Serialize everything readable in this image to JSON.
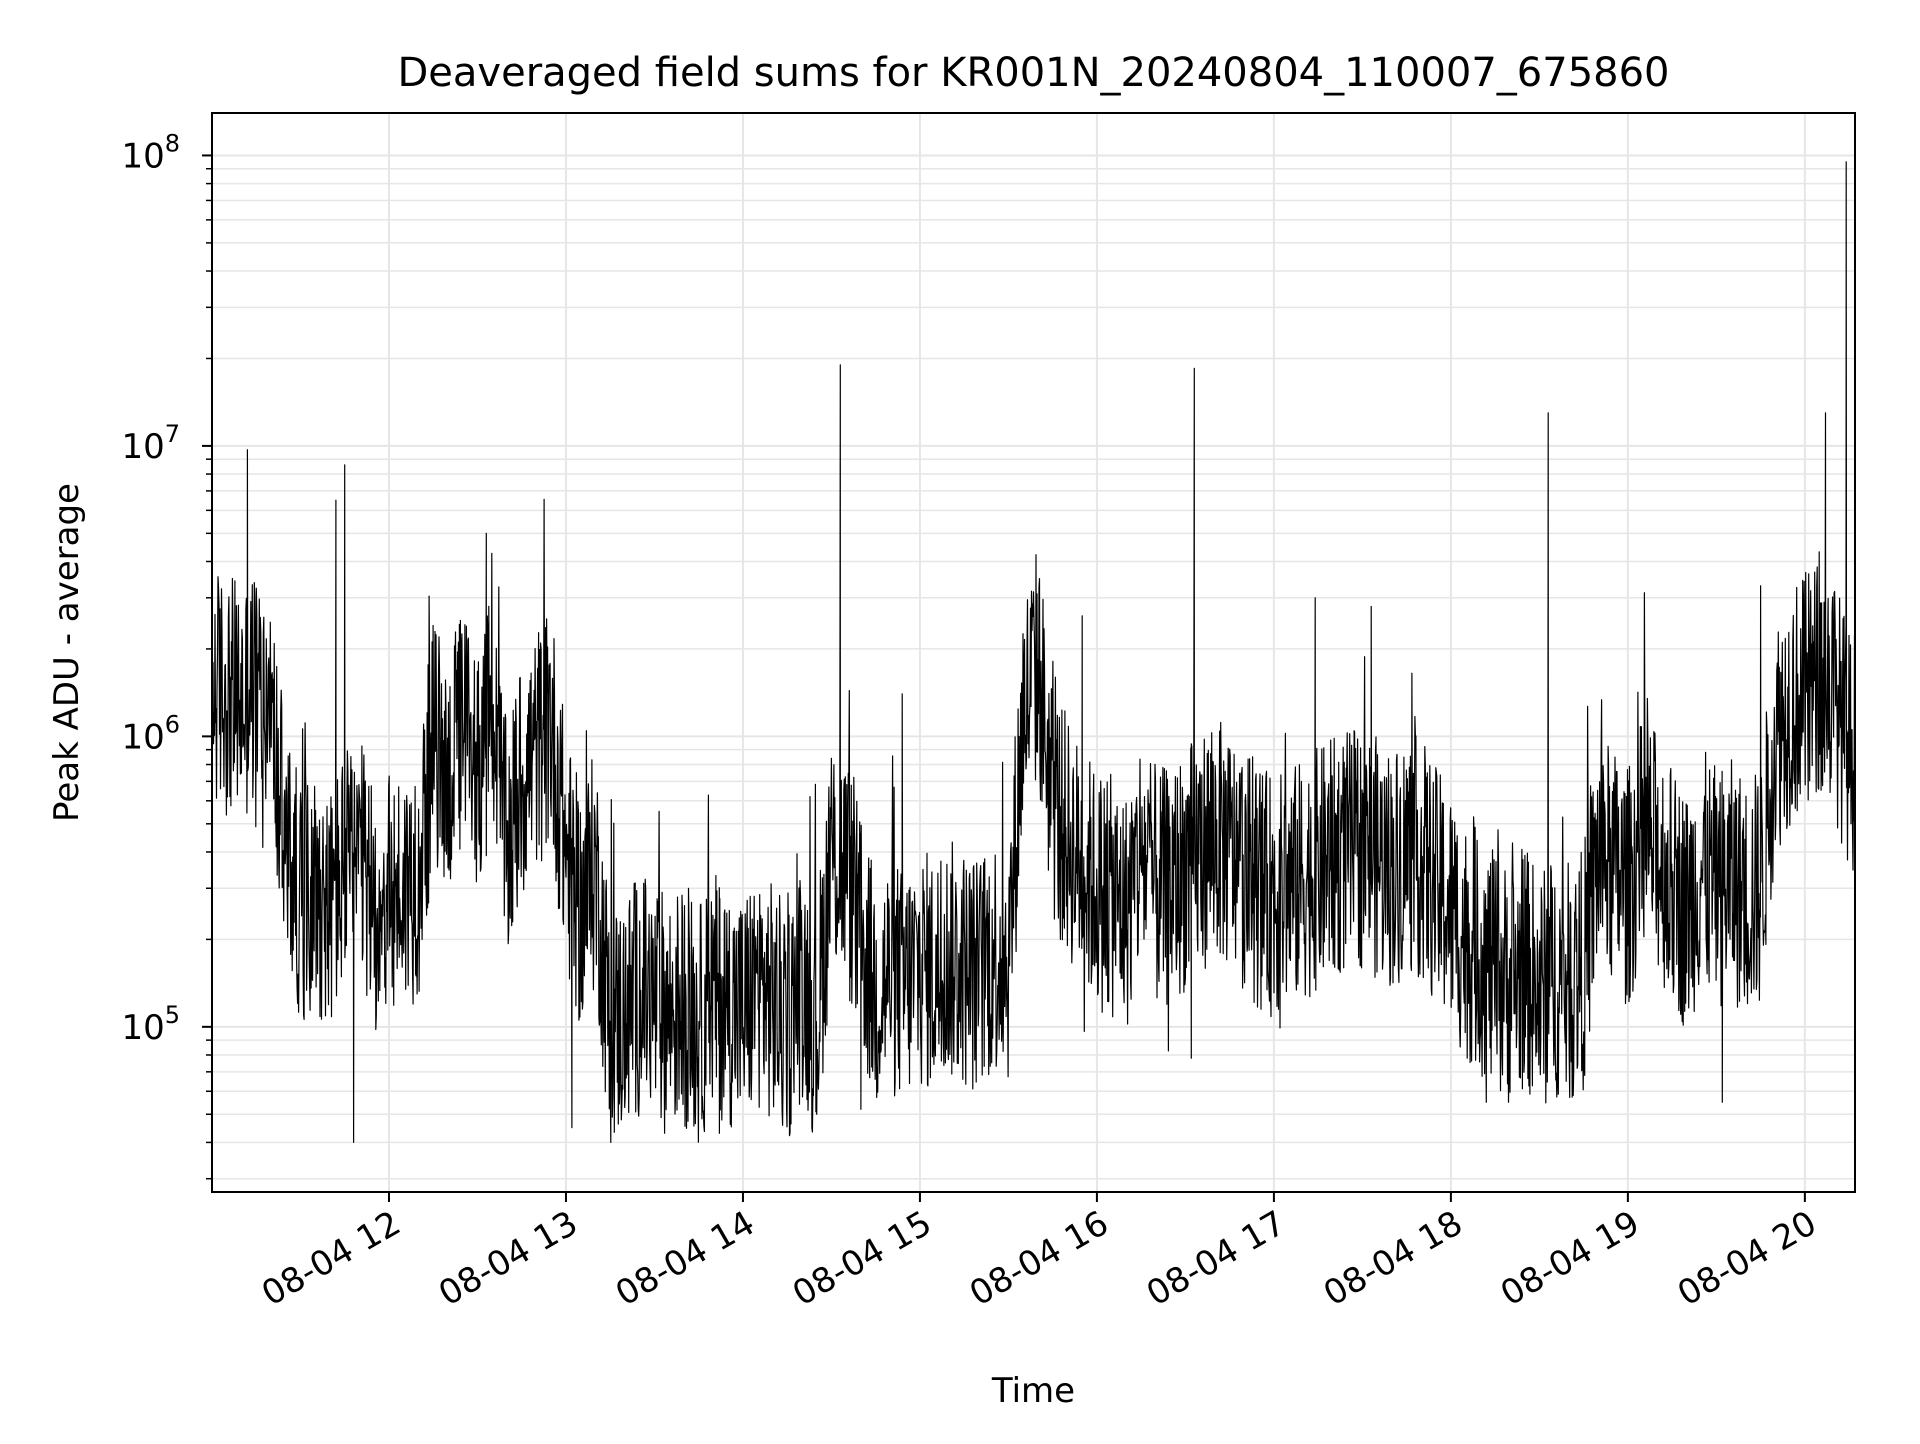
{
  "chart_data": {
    "type": "line",
    "title": "Deaveraged field sums for KR001N_20240804_110007_675860",
    "xlabel": "Time",
    "ylabel": "Peak ADU - average",
    "yscale": "log",
    "grid": true,
    "legend": "none",
    "xlim": [
      "2024-08-04 11:00",
      "2024-08-04 20:17"
    ],
    "ylim": [
      27000,
      140000000
    ],
    "x_ticks": [
      {
        "value": "2024-08-04 12:00",
        "label": "08-04 12"
      },
      {
        "value": "2024-08-04 13:00",
        "label": "08-04 13"
      },
      {
        "value": "2024-08-04 14:00",
        "label": "08-04 14"
      },
      {
        "value": "2024-08-04 15:00",
        "label": "08-04 15"
      },
      {
        "value": "2024-08-04 16:00",
        "label": "08-04 16"
      },
      {
        "value": "2024-08-04 17:00",
        "label": "08-04 17"
      },
      {
        "value": "2024-08-04 18:00",
        "label": "08-04 18"
      },
      {
        "value": "2024-08-04 19:00",
        "label": "08-04 19"
      },
      {
        "value": "2024-08-04 20:00",
        "label": "08-04 20"
      }
    ],
    "y_ticks": [
      {
        "value": 100000,
        "base": "10",
        "exp": "5"
      },
      {
        "value": 1000000,
        "base": "10",
        "exp": "6"
      },
      {
        "value": 10000000,
        "base": "10",
        "exp": "7"
      },
      {
        "value": 100000000,
        "base": "10",
        "exp": "8"
      }
    ],
    "line_color": "#000000",
    "series": [
      {
        "x": [
          "2024-08-04 11:00",
          "2024-08-04 11:05",
          "2024-08-04 11:10",
          "2024-08-04 11:15",
          "2024-08-04 11:20",
          "2024-08-04 11:25",
          "2024-08-04 11:30",
          "2024-08-04 11:35",
          "2024-08-04 11:40",
          "2024-08-04 11:45",
          "2024-08-04 11:50",
          "2024-08-04 11:55",
          "2024-08-04 12:00",
          "2024-08-04 12:05",
          "2024-08-04 12:10",
          "2024-08-04 12:15",
          "2024-08-04 12:20",
          "2024-08-04 12:25",
          "2024-08-04 12:30",
          "2024-08-04 12:35",
          "2024-08-04 12:40",
          "2024-08-04 12:45",
          "2024-08-04 12:50",
          "2024-08-04 12:55",
          "2024-08-04 13:00",
          "2024-08-04 13:05",
          "2024-08-04 13:10",
          "2024-08-04 13:15",
          "2024-08-04 13:20",
          "2024-08-04 13:25",
          "2024-08-04 13:30",
          "2024-08-04 13:35",
          "2024-08-04 13:40",
          "2024-08-04 13:45",
          "2024-08-04 13:50",
          "2024-08-04 13:55",
          "2024-08-04 14:00",
          "2024-08-04 14:05",
          "2024-08-04 14:10",
          "2024-08-04 14:15",
          "2024-08-04 14:20",
          "2024-08-04 14:25",
          "2024-08-04 14:30",
          "2024-08-04 14:35",
          "2024-08-04 14:40",
          "2024-08-04 14:45",
          "2024-08-04 14:50",
          "2024-08-04 14:55",
          "2024-08-04 15:00",
          "2024-08-04 15:05",
          "2024-08-04 15:10",
          "2024-08-04 15:15",
          "2024-08-04 15:20",
          "2024-08-04 15:25",
          "2024-08-04 15:30",
          "2024-08-04 15:35",
          "2024-08-04 15:40",
          "2024-08-04 15:45",
          "2024-08-04 15:50",
          "2024-08-04 15:55",
          "2024-08-04 16:00",
          "2024-08-04 16:05",
          "2024-08-04 16:10",
          "2024-08-04 16:15",
          "2024-08-04 16:20",
          "2024-08-04 16:25",
          "2024-08-04 16:30",
          "2024-08-04 16:35",
          "2024-08-04 16:40",
          "2024-08-04 16:45",
          "2024-08-04 16:50",
          "2024-08-04 16:55",
          "2024-08-04 17:00",
          "2024-08-04 17:05",
          "2024-08-04 17:10",
          "2024-08-04 17:15",
          "2024-08-04 17:20",
          "2024-08-04 17:25",
          "2024-08-04 17:30",
          "2024-08-04 17:35",
          "2024-08-04 17:40",
          "2024-08-04 17:45",
          "2024-08-04 17:50",
          "2024-08-04 17:55",
          "2024-08-04 18:00",
          "2024-08-04 18:05",
          "2024-08-04 18:10",
          "2024-08-04 18:15",
          "2024-08-04 18:20",
          "2024-08-04 18:25",
          "2024-08-04 18:30",
          "2024-08-04 18:35",
          "2024-08-04 18:40",
          "2024-08-04 18:45",
          "2024-08-04 18:50",
          "2024-08-04 18:55",
          "2024-08-04 19:00",
          "2024-08-04 19:05",
          "2024-08-04 19:10",
          "2024-08-04 19:15",
          "2024-08-04 19:20",
          "2024-08-04 19:25",
          "2024-08-04 19:30",
          "2024-08-04 19:35",
          "2024-08-04 19:40",
          "2024-08-04 19:45",
          "2024-08-04 19:50",
          "2024-08-04 19:55",
          "2024-08-04 20:00",
          "2024-08-04 20:05",
          "2024-08-04 20:10",
          "2024-08-04 20:15"
        ],
        "y": [
          1500000,
          1400000,
          1300000,
          1500000,
          1200000,
          400000,
          280000,
          300000,
          250000,
          350000,
          380000,
          250000,
          280000,
          300000,
          320000,
          1000000,
          700000,
          1100000,
          800000,
          1200000,
          400000,
          700000,
          900000,
          1100000,
          400000,
          250000,
          350000,
          100000,
          110000,
          130000,
          120000,
          110000,
          120000,
          100000,
          130000,
          120000,
          110000,
          140000,
          120000,
          100000,
          150000,
          100000,
          400000,
          350000,
          200000,
          130000,
          150000,
          140000,
          160000,
          150000,
          170000,
          160000,
          150000,
          180000,
          170000,
          1200000,
          1800000,
          600000,
          450000,
          350000,
          300000,
          280000,
          250000,
          400000,
          300000,
          300000,
          350000,
          400000,
          450000,
          400000,
          350000,
          300000,
          280000,
          300000,
          320000,
          350000,
          380000,
          400000,
          420000,
          380000,
          350000,
          400000,
          380000,
          300000,
          250000,
          200000,
          180000,
          150000,
          140000,
          160000,
          130000,
          150000,
          140000,
          160000,
          400000,
          350000,
          300000,
          450000,
          400000,
          300000,
          250000,
          350000,
          300000,
          320000,
          280000,
          300000,
          1000000,
          1300000,
          1400000,
          1600000,
          1400000,
          900000
        ]
      }
    ],
    "spikes": [
      {
        "x": "2024-08-04 11:12",
        "y": 9700000
      },
      {
        "x": "2024-08-04 11:42",
        "y": 6500000
      },
      {
        "x": "2024-08-04 11:45",
        "y": 8600000
      },
      {
        "x": "2024-08-04 12:33",
        "y": 5000000
      },
      {
        "x": "2024-08-04 14:33",
        "y": 19000000
      },
      {
        "x": "2024-08-04 14:54",
        "y": 1400000
      },
      {
        "x": "2024-08-04 15:55",
        "y": 2600000
      },
      {
        "x": "2024-08-04 16:33",
        "y": 18500000
      },
      {
        "x": "2024-08-04 17:14",
        "y": 3000000
      },
      {
        "x": "2024-08-04 17:33",
        "y": 2800000
      },
      {
        "x": "2024-08-04 18:33",
        "y": 13000000
      },
      {
        "x": "2024-08-04 19:45",
        "y": 3300000
      },
      {
        "x": "2024-08-04 20:07",
        "y": 13000000
      },
      {
        "x": "2024-08-04 20:14",
        "y": 95000000
      }
    ],
    "dips": [
      {
        "x": "2024-08-04 11:48",
        "y": 40000
      },
      {
        "x": "2024-08-04 13:02",
        "y": 45000
      },
      {
        "x": "2024-08-04 13:52",
        "y": 43000
      },
      {
        "x": "2024-08-04 14:25",
        "y": 50000
      },
      {
        "x": "2024-08-04 14:40",
        "y": 52000
      },
      {
        "x": "2024-08-04 16:32",
        "y": 78000
      },
      {
        "x": "2024-08-04 18:12",
        "y": 55000
      },
      {
        "x": "2024-08-04 19:32",
        "y": 55000
      }
    ]
  }
}
